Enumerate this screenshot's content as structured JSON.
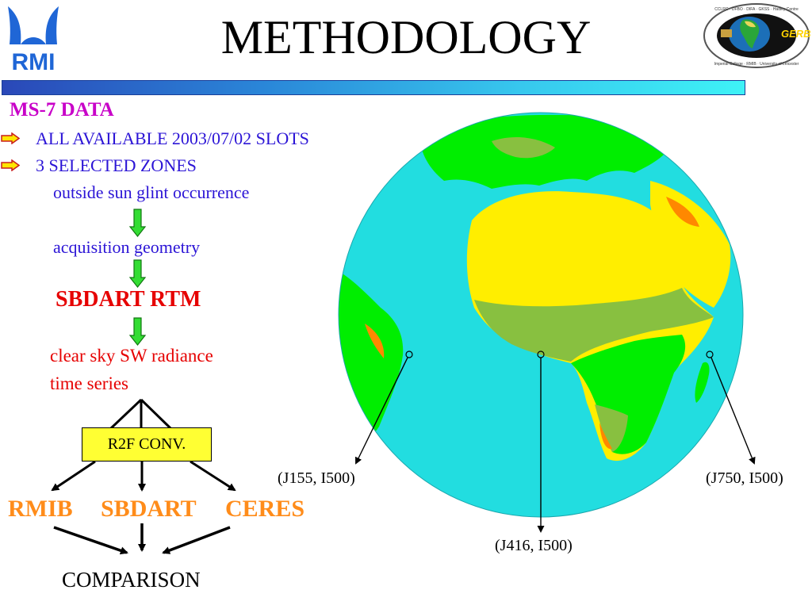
{
  "title": "METHODOLOGY",
  "logos": {
    "rmi_text": "RMI",
    "gerb_text": "GERB",
    "gerb_ring_top": "CCLRC · DFBO · DIFA · GKSS · Hadley Centre",
    "gerb_ring_bottom": "Imperial College · RMIB · University of Leicester"
  },
  "left_panel": {
    "section_title": "MS-7 DATA",
    "bullets": [
      "ALL AVAILABLE 2003/07/02 SLOTS",
      "3 SELECTED ZONES"
    ],
    "step1": "outside sun glint occurrence",
    "step2": "acquisition geometry",
    "model": "SBDART RTM",
    "output_line1": "clear sky SW radiance",
    "output_line2": "time series",
    "conversion": "R2F CONV.",
    "branches": [
      "RMIB",
      "SBDART",
      "CERES"
    ],
    "result": "COMPARISON"
  },
  "zones": [
    {
      "label": "(J155, I500)"
    },
    {
      "label": "(J416, I500)"
    },
    {
      "label": "(J750, I500)"
    }
  ],
  "colors": {
    "ocean": "#22dde0",
    "desert": "#ffee00",
    "vegetation": "#00ee00",
    "savanna": "#88c040",
    "arid": "#ff8800",
    "section_title": "#c800c8",
    "bullet_text": "#2b14d6",
    "model_text": "#e60000",
    "branch_text": "#ff8c1a",
    "box_fill": "#ffff33",
    "flow_arrow": "#33dd33"
  }
}
